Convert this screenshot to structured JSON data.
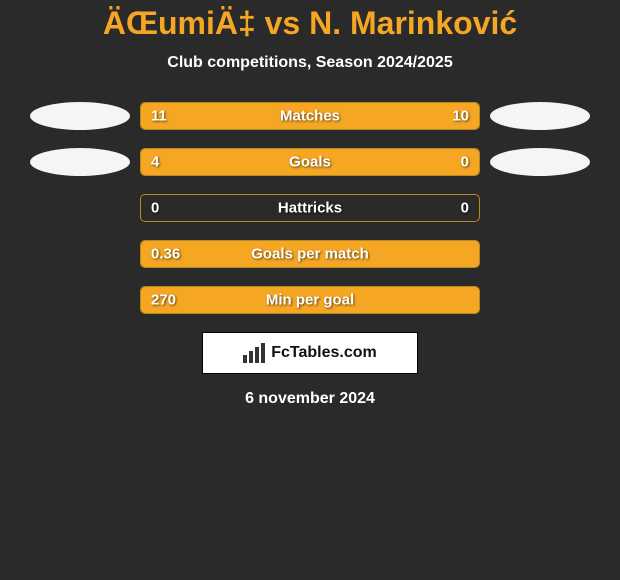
{
  "title": "ÄŒumiÄ‡ vs N. Marinković",
  "subtitle": "Club competitions, Season 2024/2025",
  "colors": {
    "accent": "#f5a623",
    "border": "#b98820",
    "background": "#2a2a2a",
    "ellipse": "#f5f5f5",
    "text": "#ffffff"
  },
  "ellipses": {
    "row0_left": true,
    "row0_right": true,
    "row1_left": true,
    "row1_right": true
  },
  "rows": [
    {
      "label": "Matches",
      "left_val": "11",
      "right_val": "10",
      "left_pct": 52.4,
      "right_pct": 47.6
    },
    {
      "label": "Goals",
      "left_val": "4",
      "right_val": "0",
      "left_pct": 78.0,
      "right_pct": 22.0
    },
    {
      "label": "Hattricks",
      "left_val": "0",
      "right_val": "0",
      "left_pct": 0.0,
      "right_pct": 0.0
    },
    {
      "label": "Goals per match",
      "left_val": "0.36",
      "right_val": "",
      "left_pct": 100.0,
      "right_pct": 0.0
    },
    {
      "label": "Min per goal",
      "left_val": "270",
      "right_val": "",
      "left_pct": 100.0,
      "right_pct": 0.0
    }
  ],
  "logo_text": "FcTables.com",
  "date": "6 november 2024"
}
